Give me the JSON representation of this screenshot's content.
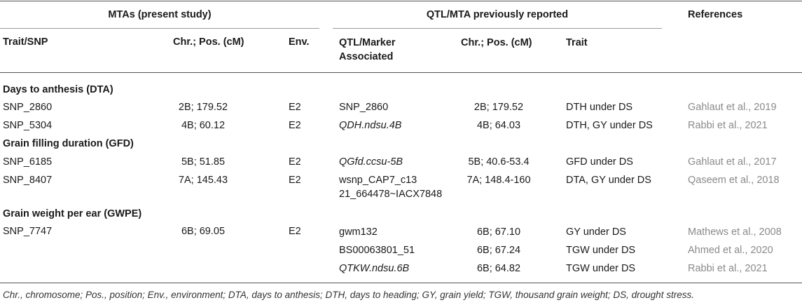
{
  "header": {
    "group_present": "MTAs (present study)",
    "group_previous": "QTL/MTA previously reported",
    "references": "References",
    "col_trait_snp": "Trait/SNP",
    "col_chr_pos": "Chr.; Pos. (cM)",
    "col_env": "Env.",
    "col_qtl_marker_line1": "QTL/Marker",
    "col_qtl_marker_line2": "Associated",
    "col_chr_pos_prev": "Chr.; Pos. (cM)",
    "col_trait": "Trait"
  },
  "sections": {
    "dta": "Days to anthesis (DTA)",
    "gfd": "Grain filling duration (GFD)",
    "gwpe": "Grain weight per ear (GWPE)"
  },
  "rows": {
    "r1": {
      "snp": "SNP_2860",
      "chr": "2B; 179.52",
      "env": "E2",
      "qtl": "SNP_2860",
      "chr_prev": "2B; 179.52",
      "trait": "DTH under DS",
      "ref": "Gahlaut et al., 2019"
    },
    "r2": {
      "snp": "SNP_5304",
      "chr": "4B; 60.12",
      "env": "E2",
      "qtl": "QDH.ndsu.4B",
      "chr_prev": "4B; 64.03",
      "trait": "DTH, GY under DS",
      "ref": "Rabbi et al., 2021"
    },
    "r3": {
      "snp": "SNP_6185",
      "chr": "5B; 51.85",
      "env": "E2",
      "qtl": "QGfd.ccsu-5B",
      "chr_prev": "5B; 40.6-53.4",
      "trait": "GFD under DS",
      "ref": "Gahlaut et al., 2017"
    },
    "r4": {
      "snp": "SNP_8407",
      "chr": "7A; 145.43",
      "env": "E2",
      "qtl_line1": "wsnp_CAP7_c13",
      "qtl_line2": "21_664478~IACX7848",
      "chr_prev": "7A; 148.4-160",
      "trait": "DTA, GY under DS",
      "ref": "Qaseem et al., 2018"
    },
    "r5": {
      "snp": "SNP_7747",
      "chr": "6B; 69.05",
      "env": "E2",
      "qtl": "gwm132",
      "chr_prev": "6B; 67.10",
      "trait": "GY under DS",
      "ref": "Mathews et al., 2008"
    },
    "r6": {
      "qtl": "BS00063801_51",
      "chr_prev": "6B; 67.24",
      "trait": "TGW under DS",
      "ref": "Ahmed et al., 2020"
    },
    "r7": {
      "qtl": "QTKW.ndsu.6B",
      "chr_prev": "6B; 64.82",
      "trait": "TGW under DS",
      "ref": "Rabbi et al., 2021"
    }
  },
  "footnote": "Chr., chromosome; Pos., position; Env., environment; DTA, days to anthesis; DTH, days to heading; GY, grain yield; TGW, thousand grain weight; DS, drought stress."
}
